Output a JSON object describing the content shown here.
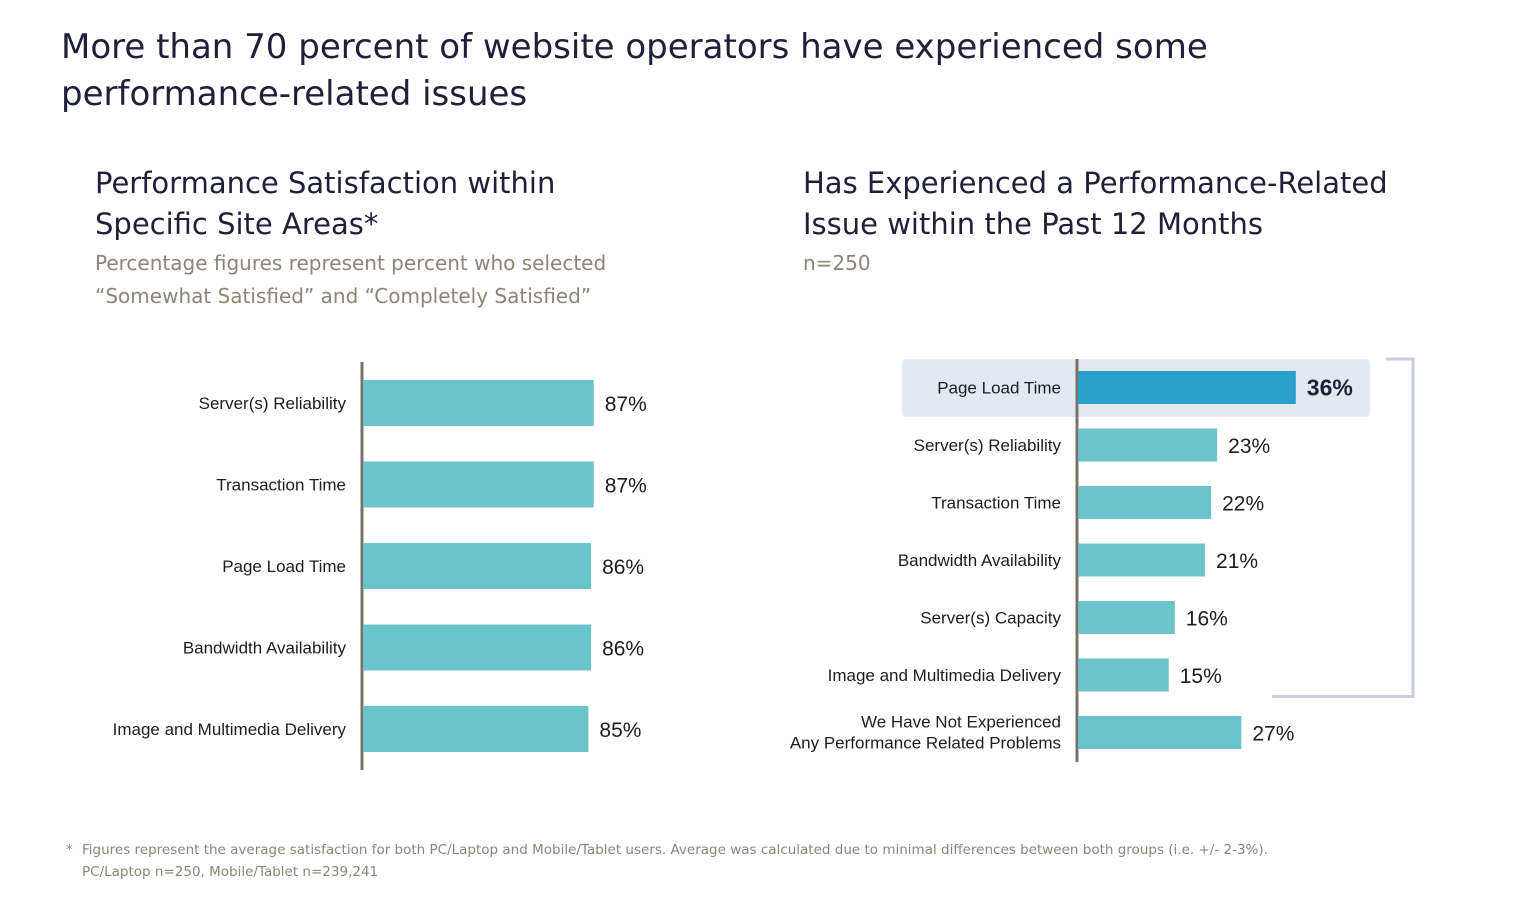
{
  "headline": "More than 70 percent of website operators have experienced some performance-related issues",
  "colors": {
    "bar": "#6bc4c9",
    "highlight_bar": "#2a9fcc",
    "highlight_bg": "#e2e9f1",
    "axis": "#7a7267",
    "bracket": "#c6cfdb"
  },
  "chart_data": [
    {
      "type": "bar",
      "orientation": "horizontal",
      "title": "Performance Satisfaction within Specific Site Areas*",
      "subtitle": "Percentage figures represent percent who selected “Somewhat Satisfied” and “Completely Satisfied”",
      "categories": [
        "Server(s) Reliability",
        "Transaction Time",
        "Page Load Time",
        "Bandwidth Availability",
        "Image and Multimedia Delivery"
      ],
      "values": [
        87,
        87,
        86,
        86,
        85
      ],
      "value_labels": [
        "87%",
        "87%",
        "86%",
        "86%",
        "85%"
      ],
      "xlim": [
        0,
        100
      ]
    },
    {
      "type": "bar",
      "orientation": "horizontal",
      "title": "Has Experienced a Performance-Related Issue within the Past 12 Months",
      "subtitle": "n=250",
      "categories": [
        "Page Load Time",
        "Server(s) Reliability",
        "Transaction Time",
        "Bandwidth Availability",
        "Server(s) Capacity",
        "Image and Multimedia Delivery",
        "We Have Not Experienced Any Performance Related Problems"
      ],
      "values": [
        36,
        23,
        22,
        21,
        16,
        15,
        27
      ],
      "value_labels": [
        "36%",
        "23%",
        "22%",
        "21%",
        "16%",
        "15%",
        "27%"
      ],
      "highlighted_category": "Page Load Time",
      "bracket_groups_first_n": 6,
      "xlim": [
        0,
        100
      ]
    }
  ],
  "footnote": {
    "marker": "*",
    "line1": "Figures represent the average satisfaction for both PC/Laptop and Mobile/Tablet users. Average was calculated due to minimal differences between both groups (i.e. +/- 2-3%).",
    "line2": "PC/Laptop n=250, Mobile/Tablet n=239,241"
  }
}
